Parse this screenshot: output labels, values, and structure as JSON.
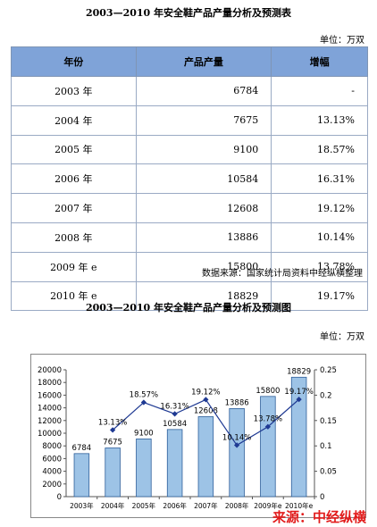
{
  "table_title": "2003—2010 年安全鞋产品产量分析及预测表",
  "table_unit": "单位：万双",
  "table_headers": [
    "年份",
    "产品产量",
    "增幅"
  ],
  "table_rows": [
    {
      "year": "2003 年",
      "output": "6784",
      "growth": "-"
    },
    {
      "year": "2004 年",
      "output": "7675",
      "growth": "13.13%"
    },
    {
      "year": "2005 年",
      "output": "9100",
      "growth": "18.57%"
    },
    {
      "year": "2006 年",
      "output": "10584",
      "growth": "16.31%"
    },
    {
      "year": "2007 年",
      "output": "12608",
      "growth": "19.12%"
    },
    {
      "year": "2008 年",
      "output": "13886",
      "growth": "10.14%"
    },
    {
      "year": "2009 年 e",
      "output": "15800",
      "growth": "13.78%"
    },
    {
      "year": "2010 年 e",
      "output": "18829",
      "growth": "19.17%"
    }
  ],
  "table_source": "数据来源：国家统计局资料中经纵横整理",
  "chart_title": "2003—2010 年安全鞋产品产量分析及预测图",
  "chart_unit": "单位：万双",
  "watermark": "来源：中经纵横",
  "colors": {
    "header_bg": "#7fa3d8",
    "bar": "#9dc3e6",
    "bar_stroke": "#2e5f9a",
    "line": "#1f3a93",
    "watermark": "#e21b1b"
  },
  "chart_data": {
    "type": "bar",
    "categories": [
      "2003年",
      "2004年",
      "2005年",
      "2006年",
      "2007年",
      "2008年",
      "2009年e",
      "2010年e"
    ],
    "series": [
      {
        "type": "bar",
        "axis": "left",
        "values": [
          6784,
          7675,
          9100,
          10584,
          12608,
          13886,
          15800,
          18829
        ],
        "labels": [
          "6784",
          "7675",
          "9100",
          "10584",
          "12608",
          "13886",
          "15800",
          "18829"
        ]
      },
      {
        "type": "line",
        "axis": "right",
        "values": [
          null,
          0.1313,
          0.1857,
          0.1631,
          0.1912,
          0.1014,
          0.1378,
          0.1917
        ],
        "labels": [
          "",
          "13.13%",
          "18.57%",
          "16.31%",
          "19.12%",
          "10.14%",
          "13.78%",
          "19.17%"
        ]
      }
    ],
    "y_left": {
      "min": 0,
      "max": 20000,
      "step": 2000,
      "ticks": [
        "0",
        "2000",
        "4000",
        "6000",
        "8000",
        "10000",
        "12000",
        "14000",
        "16000",
        "18000",
        "20000"
      ]
    },
    "y_right": {
      "min": 0,
      "max": 0.25,
      "step": 0.05,
      "ticks": [
        "0",
        "0.05",
        "0.1",
        "0.15",
        "0.2",
        "0.25"
      ]
    },
    "grid": false,
    "legend": "none"
  }
}
